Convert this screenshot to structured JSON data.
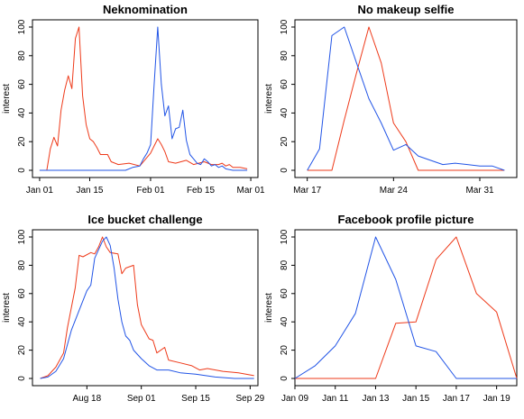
{
  "chart_data": [
    {
      "type": "line",
      "title": "Neknomination",
      "xlabel": "",
      "ylabel": "interest",
      "x_type": "date",
      "xlim": [
        "2013-12-30",
        "2014-03-03"
      ],
      "ylim": [
        0,
        100
      ],
      "x_ticks": [
        {
          "value": "2014-01-01",
          "label": "Jan 01"
        },
        {
          "value": "2014-01-15",
          "label": "Jan 15"
        },
        {
          "value": "2014-02-01",
          "label": "Feb 01"
        },
        {
          "value": "2014-02-15",
          "label": "Feb 15"
        },
        {
          "value": "2014-03-01",
          "label": "Mar 01"
        }
      ],
      "y_ticks": [
        0,
        20,
        40,
        60,
        80,
        100
      ],
      "series": [
        {
          "color": "#EE3A1A",
          "points": [
            [
              "2014-01-01",
              0
            ],
            [
              "2014-01-03",
              0
            ],
            [
              "2014-01-04",
              15
            ],
            [
              "2014-01-05",
              23
            ],
            [
              "2014-01-06",
              17
            ],
            [
              "2014-01-07",
              42
            ],
            [
              "2014-01-08",
              56
            ],
            [
              "2014-01-09",
              66
            ],
            [
              "2014-01-10",
              57
            ],
            [
              "2014-01-11",
              92
            ],
            [
              "2014-01-12",
              100
            ],
            [
              "2014-01-13",
              52
            ],
            [
              "2014-01-14",
              32
            ],
            [
              "2014-01-15",
              22
            ],
            [
              "2014-01-16",
              20
            ],
            [
              "2014-01-17",
              16
            ],
            [
              "2014-01-18",
              11
            ],
            [
              "2014-01-20",
              11
            ],
            [
              "2014-01-21",
              6
            ],
            [
              "2014-01-23",
              4
            ],
            [
              "2014-01-26",
              5
            ],
            [
              "2014-01-29",
              3
            ],
            [
              "2014-01-31",
              9
            ],
            [
              "2014-02-01",
              12
            ],
            [
              "2014-02-02",
              17
            ],
            [
              "2014-02-03",
              22
            ],
            [
              "2014-02-04",
              18
            ],
            [
              "2014-02-05",
              13
            ],
            [
              "2014-02-06",
              6
            ],
            [
              "2014-02-08",
              5
            ],
            [
              "2014-02-11",
              7
            ],
            [
              "2014-02-13",
              4
            ],
            [
              "2014-02-16",
              6
            ],
            [
              "2014-02-18",
              4
            ],
            [
              "2014-02-20",
              4
            ],
            [
              "2014-02-21",
              5
            ],
            [
              "2014-02-22",
              3
            ],
            [
              "2014-02-23",
              4
            ],
            [
              "2014-02-24",
              2
            ],
            [
              "2014-02-26",
              2
            ],
            [
              "2014-02-28",
              1
            ]
          ]
        },
        {
          "color": "#2154E6",
          "points": [
            [
              "2014-01-01",
              0
            ],
            [
              "2014-01-25",
              0
            ],
            [
              "2014-01-27",
              2
            ],
            [
              "2014-01-29",
              3
            ],
            [
              "2014-01-30",
              8
            ],
            [
              "2014-01-31",
              12
            ],
            [
              "2014-02-01",
              18
            ],
            [
              "2014-02-02",
              60
            ],
            [
              "2014-02-03",
              100
            ],
            [
              "2014-02-04",
              60
            ],
            [
              "2014-02-05",
              38
            ],
            [
              "2014-02-06",
              45
            ],
            [
              "2014-02-07",
              22
            ],
            [
              "2014-02-08",
              29
            ],
            [
              "2014-02-09",
              30
            ],
            [
              "2014-02-10",
              42
            ],
            [
              "2014-02-11",
              21
            ],
            [
              "2014-02-12",
              11
            ],
            [
              "2014-02-13",
              8
            ],
            [
              "2014-02-14",
              5
            ],
            [
              "2014-02-15",
              4
            ],
            [
              "2014-02-16",
              8
            ],
            [
              "2014-02-17",
              6
            ],
            [
              "2014-02-18",
              3
            ],
            [
              "2014-02-19",
              4
            ],
            [
              "2014-02-20",
              2
            ],
            [
              "2014-02-21",
              3
            ],
            [
              "2014-02-22",
              1
            ],
            [
              "2014-02-24",
              0
            ],
            [
              "2014-02-28",
              0
            ]
          ]
        }
      ]
    },
    {
      "type": "line",
      "title": "No makeup selfie",
      "xlabel": "",
      "ylabel": "interest",
      "x_type": "date",
      "xlim": [
        "2014-03-16",
        "2014-04-03"
      ],
      "ylim": [
        0,
        100
      ],
      "x_ticks": [
        {
          "value": "2014-03-17",
          "label": "Mar 17"
        },
        {
          "value": "2014-03-24",
          "label": "Mar 24"
        },
        {
          "value": "2014-03-31",
          "label": "Mar 31"
        }
      ],
      "y_ticks": [
        0,
        20,
        40,
        60,
        80,
        100
      ],
      "series": [
        {
          "color": "#EE3A1A",
          "points": [
            [
              "2014-03-17",
              0
            ],
            [
              "2014-03-19",
              0
            ],
            [
              "2014-03-20",
              35
            ],
            [
              "2014-03-21",
              68
            ],
            [
              "2014-03-22",
              100
            ],
            [
              "2014-03-23",
              75
            ],
            [
              "2014-03-24",
              33
            ],
            [
              "2014-03-25",
              20
            ],
            [
              "2014-03-26",
              0
            ],
            [
              "2014-04-02",
              0
            ]
          ]
        },
        {
          "color": "#2154E6",
          "points": [
            [
              "2014-03-17",
              0
            ],
            [
              "2014-03-18",
              15
            ],
            [
              "2014-03-19",
              94
            ],
            [
              "2014-03-20",
              100
            ],
            [
              "2014-03-21",
              75
            ],
            [
              "2014-03-22",
              50
            ],
            [
              "2014-03-23",
              33
            ],
            [
              "2014-03-24",
              14
            ],
            [
              "2014-03-25",
              18
            ],
            [
              "2014-03-26",
              10
            ],
            [
              "2014-03-27",
              7
            ],
            [
              "2014-03-28",
              4
            ],
            [
              "2014-03-29",
              5
            ],
            [
              "2014-03-30",
              4
            ],
            [
              "2014-03-31",
              3
            ],
            [
              "2014-04-01",
              3
            ],
            [
              "2014-04-02",
              0
            ]
          ]
        }
      ]
    },
    {
      "type": "line",
      "title": "Ice bucket challenge",
      "xlabel": "",
      "ylabel": "interest",
      "x_type": "date",
      "xlim": [
        "2014-08-04",
        "2014-10-01"
      ],
      "ylim": [
        0,
        100
      ],
      "x_ticks": [
        {
          "value": "2014-08-18",
          "label": "Aug 18"
        },
        {
          "value": "2014-09-01",
          "label": "Sep 01"
        },
        {
          "value": "2014-09-15",
          "label": "Sep 15"
        },
        {
          "value": "2014-09-29",
          "label": "Sep 29"
        }
      ],
      "y_ticks": [
        0,
        20,
        40,
        60,
        80,
        100
      ],
      "series": [
        {
          "color": "#EE3A1A",
          "points": [
            [
              "2014-08-06",
              0
            ],
            [
              "2014-08-08",
              2
            ],
            [
              "2014-08-10",
              8
            ],
            [
              "2014-08-12",
              18
            ],
            [
              "2014-08-13",
              36
            ],
            [
              "2014-08-15",
              64
            ],
            [
              "2014-08-16",
              87
            ],
            [
              "2014-08-17",
              86
            ],
            [
              "2014-08-19",
              89
            ],
            [
              "2014-08-20",
              88
            ],
            [
              "2014-08-21",
              93
            ],
            [
              "2014-08-22",
              100
            ],
            [
              "2014-08-23",
              93
            ],
            [
              "2014-08-24",
              89
            ],
            [
              "2014-08-26",
              88
            ],
            [
              "2014-08-27",
              74
            ],
            [
              "2014-08-28",
              78
            ],
            [
              "2014-08-30",
              80
            ],
            [
              "2014-08-31",
              52
            ],
            [
              "2014-09-01",
              38
            ],
            [
              "2014-09-03",
              28
            ],
            [
              "2014-09-04",
              27
            ],
            [
              "2014-09-05",
              18
            ],
            [
              "2014-09-07",
              22
            ],
            [
              "2014-09-08",
              13
            ],
            [
              "2014-09-11",
              11
            ],
            [
              "2014-09-14",
              9
            ],
            [
              "2014-09-16",
              6
            ],
            [
              "2014-09-18",
              7
            ],
            [
              "2014-09-22",
              5
            ],
            [
              "2014-09-26",
              4
            ],
            [
              "2014-09-30",
              2
            ]
          ]
        },
        {
          "color": "#2154E6",
          "points": [
            [
              "2014-08-06",
              0
            ],
            [
              "2014-08-08",
              1
            ],
            [
              "2014-08-10",
              5
            ],
            [
              "2014-08-12",
              14
            ],
            [
              "2014-08-14",
              34
            ],
            [
              "2014-08-16",
              48
            ],
            [
              "2014-08-18",
              62
            ],
            [
              "2014-08-19",
              66
            ],
            [
              "2014-08-20",
              85
            ],
            [
              "2014-08-22",
              97
            ],
            [
              "2014-08-23",
              100
            ],
            [
              "2014-08-24",
              94
            ],
            [
              "2014-08-25",
              78
            ],
            [
              "2014-08-26",
              56
            ],
            [
              "2014-08-27",
              40
            ],
            [
              "2014-08-28",
              30
            ],
            [
              "2014-08-29",
              27
            ],
            [
              "2014-08-30",
              20
            ],
            [
              "2014-09-01",
              14
            ],
            [
              "2014-09-03",
              9
            ],
            [
              "2014-09-05",
              6
            ],
            [
              "2014-09-08",
              6
            ],
            [
              "2014-09-11",
              4
            ],
            [
              "2014-09-15",
              3
            ],
            [
              "2014-09-20",
              1
            ],
            [
              "2014-09-25",
              0
            ],
            [
              "2014-09-30",
              0
            ]
          ]
        }
      ]
    },
    {
      "type": "line",
      "title": "Facebook profile picture",
      "xlabel": "",
      "ylabel": "interest",
      "x_type": "date",
      "xlim": [
        "2014-01-09",
        "2014-01-20"
      ],
      "ylim": [
        0,
        100
      ],
      "x_ticks": [
        {
          "value": "2014-01-09",
          "label": "Jan 09"
        },
        {
          "value": "2014-01-11",
          "label": "Jan 11"
        },
        {
          "value": "2014-01-13",
          "label": "Jan 13"
        },
        {
          "value": "2014-01-15",
          "label": "Jan 15"
        },
        {
          "value": "2014-01-17",
          "label": "Jan 17"
        },
        {
          "value": "2014-01-19",
          "label": "Jan 19"
        }
      ],
      "y_ticks": [
        0,
        20,
        40,
        60,
        80,
        100
      ],
      "series": [
        {
          "color": "#EE3A1A",
          "points": [
            [
              "2014-01-09",
              0
            ],
            [
              "2014-01-13",
              0
            ],
            [
              "2014-01-14",
              39
            ],
            [
              "2014-01-15",
              40
            ],
            [
              "2014-01-16",
              84
            ],
            [
              "2014-01-17",
              100
            ],
            [
              "2014-01-18",
              60
            ],
            [
              "2014-01-19",
              47
            ],
            [
              "2014-01-20",
              0
            ]
          ]
        },
        {
          "color": "#2154E6",
          "points": [
            [
              "2014-01-09",
              0
            ],
            [
              "2014-01-10",
              9
            ],
            [
              "2014-01-11",
              23
            ],
            [
              "2014-01-12",
              46
            ],
            [
              "2014-01-13",
              100
            ],
            [
              "2014-01-14",
              70
            ],
            [
              "2014-01-15",
              23
            ],
            [
              "2014-01-16",
              19
            ],
            [
              "2014-01-17",
              0
            ],
            [
              "2014-01-20",
              0
            ]
          ]
        }
      ]
    }
  ]
}
